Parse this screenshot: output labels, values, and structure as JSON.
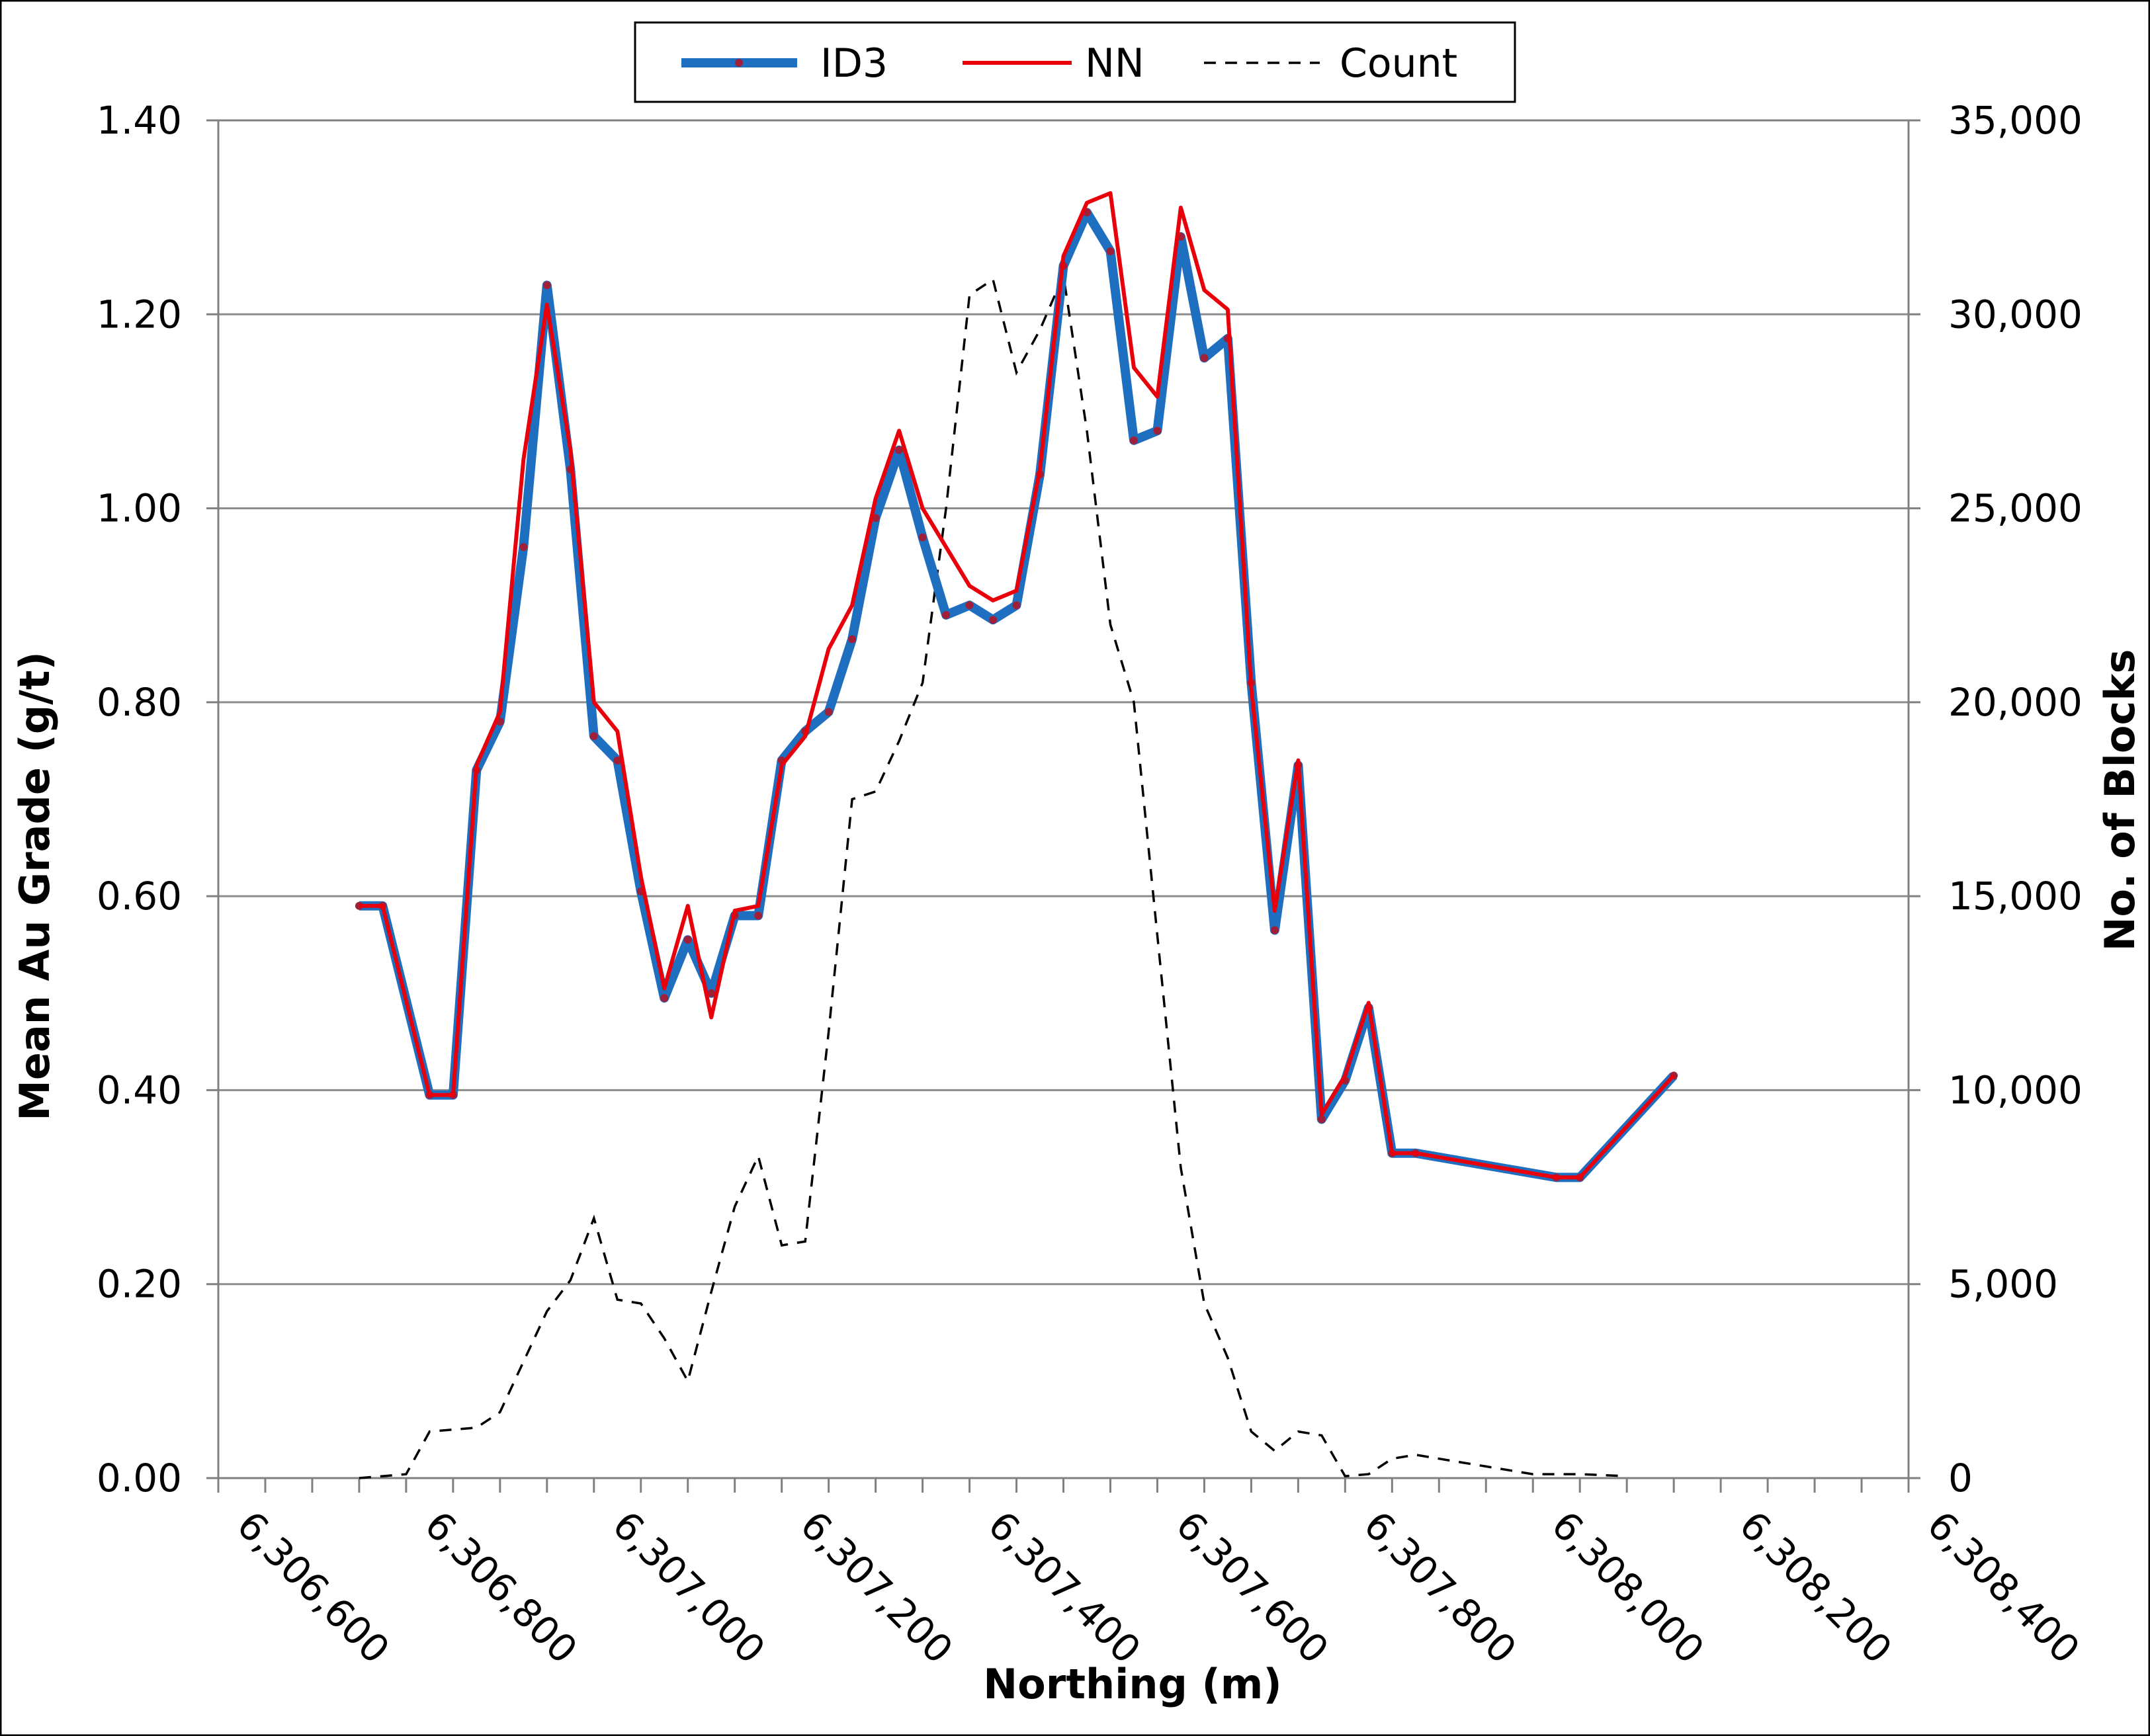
{
  "chart_data": {
    "type": "line",
    "title": "",
    "xlabel": "Northing (m)",
    "ylabel": "Mean Au Grade (g/t)",
    "y2label": "No. of Blocks",
    "xlim": [
      6306600,
      6308400
    ],
    "ylim": [
      0,
      1.4
    ],
    "y2lim": [
      0,
      35000
    ],
    "xticks": [
      6306600,
      6306800,
      6307000,
      6307200,
      6307400,
      6307600,
      6307800,
      6308000,
      6308200,
      6308400
    ],
    "xtick_labels": [
      "6,306,600",
      "6,306,800",
      "6,307,000",
      "6,307,200",
      "6,307,400",
      "6,307,600",
      "6,307,800",
      "6,308,000",
      "6,308,200",
      "6,308,400"
    ],
    "yticks": [
      0,
      0.2,
      0.4,
      0.6,
      0.8,
      1.0,
      1.2,
      1.4
    ],
    "ytick_labels": [
      "0.00",
      "0.20",
      "0.40",
      "0.60",
      "0.80",
      "1.00",
      "1.20",
      "1.40"
    ],
    "y2ticks": [
      0,
      5000,
      10000,
      15000,
      20000,
      25000,
      30000,
      35000
    ],
    "y2tick_labels": [
      "0",
      "5,000",
      "10,000",
      "15,000",
      "20,000",
      "25,000",
      "30,000",
      "35,000"
    ],
    "grid": true,
    "legend_position": "top-center",
    "series": [
      {
        "name": "ID3",
        "axis": "left",
        "color": "#1f6fc0",
        "marker_color": "#a0203a",
        "style": "solid-thick-markers",
        "x": [
          6306750,
          6306775,
          6306825,
          6306850,
          6306875,
          6306900,
          6306925,
          6306950,
          6306975,
          6307000,
          6307025,
          6307050,
          6307075,
          6307100,
          6307125,
          6307150,
          6307175,
          6307200,
          6307225,
          6307250,
          6307275,
          6307300,
          6307325,
          6307350,
          6307375,
          6307400,
          6307425,
          6307450,
          6307475,
          6307500,
          6307525,
          6307550,
          6307575,
          6307600,
          6307625,
          6307650,
          6307675,
          6307700,
          6307725,
          6307750,
          6307775,
          6307800,
          6307825,
          6307850,
          6307875,
          6308025,
          6308050,
          6308150
        ],
        "values": [
          0.59,
          0.59,
          0.395,
          0.395,
          0.73,
          0.78,
          0.96,
          1.23,
          1.04,
          0.765,
          0.74,
          0.605,
          0.495,
          0.555,
          0.5,
          0.58,
          0.58,
          0.74,
          0.77,
          0.79,
          0.865,
          0.99,
          1.06,
          0.97,
          0.89,
          0.9,
          0.885,
          0.9,
          1.035,
          1.25,
          1.305,
          1.265,
          1.07,
          1.08,
          1.28,
          1.155,
          1.175,
          0.82,
          0.565,
          0.735,
          0.37,
          0.41,
          0.485,
          0.335,
          0.335,
          0.31,
          0.31,
          0.415
        ]
      },
      {
        "name": "NN",
        "axis": "left",
        "color": "#e8000b",
        "style": "solid",
        "x": [
          6306750,
          6306775,
          6306825,
          6306850,
          6306875,
          6306900,
          6306925,
          6306950,
          6306975,
          6307000,
          6307025,
          6307050,
          6307075,
          6307100,
          6307125,
          6307150,
          6307175,
          6307200,
          6307225,
          6307250,
          6307275,
          6307300,
          6307325,
          6307350,
          6307375,
          6307400,
          6307425,
          6307450,
          6307475,
          6307500,
          6307525,
          6307550,
          6307575,
          6307600,
          6307625,
          6307650,
          6307675,
          6307700,
          6307725,
          6307750,
          6307775,
          6307800,
          6307825,
          6307850,
          6307875,
          6308025,
          6308050,
          6308150
        ],
        "values": [
          0.59,
          0.59,
          0.395,
          0.395,
          0.735,
          0.79,
          1.05,
          1.21,
          1.06,
          0.8,
          0.77,
          0.62,
          0.505,
          0.59,
          0.475,
          0.585,
          0.59,
          0.735,
          0.765,
          0.855,
          0.9,
          1.01,
          1.08,
          1.0,
          0.96,
          0.92,
          0.905,
          0.915,
          1.04,
          1.26,
          1.315,
          1.325,
          1.145,
          1.115,
          1.31,
          1.225,
          1.205,
          0.815,
          0.585,
          0.74,
          0.375,
          0.415,
          0.49,
          0.335,
          0.335,
          0.31,
          0.31,
          0.415
        ]
      },
      {
        "name": "Count",
        "axis": "right",
        "color": "#000000",
        "style": "dashed",
        "x": [
          6306750,
          6306775,
          6306800,
          6306825,
          6306850,
          6306875,
          6306900,
          6306925,
          6306950,
          6306975,
          6307000,
          6307025,
          6307050,
          6307075,
          6307100,
          6307125,
          6307150,
          6307175,
          6307200,
          6307225,
          6307250,
          6307275,
          6307300,
          6307325,
          6307350,
          6307375,
          6307400,
          6307425,
          6307450,
          6307475,
          6307500,
          6307525,
          6307550,
          6307575,
          6307600,
          6307625,
          6307650,
          6307675,
          6307700,
          6307725,
          6307750,
          6307775,
          6307800,
          6307825,
          6307850,
          6307875,
          6307900,
          6307950,
          6308000,
          6308050,
          6308100
        ],
        "values": [
          0,
          50,
          100,
          1200,
          1250,
          1300,
          1700,
          3000,
          4300,
          5100,
          6700,
          4600,
          4500,
          3600,
          2500,
          4800,
          7000,
          8300,
          6000,
          6100,
          11500,
          17500,
          17700,
          19000,
          20500,
          25000,
          30500,
          30900,
          28500,
          29600,
          31000,
          27000,
          22000,
          20000,
          14000,
          8000,
          4500,
          3100,
          1200,
          700,
          1200,
          1100,
          50,
          100,
          500,
          600,
          500,
          300,
          100,
          100,
          50
        ]
      }
    ]
  }
}
